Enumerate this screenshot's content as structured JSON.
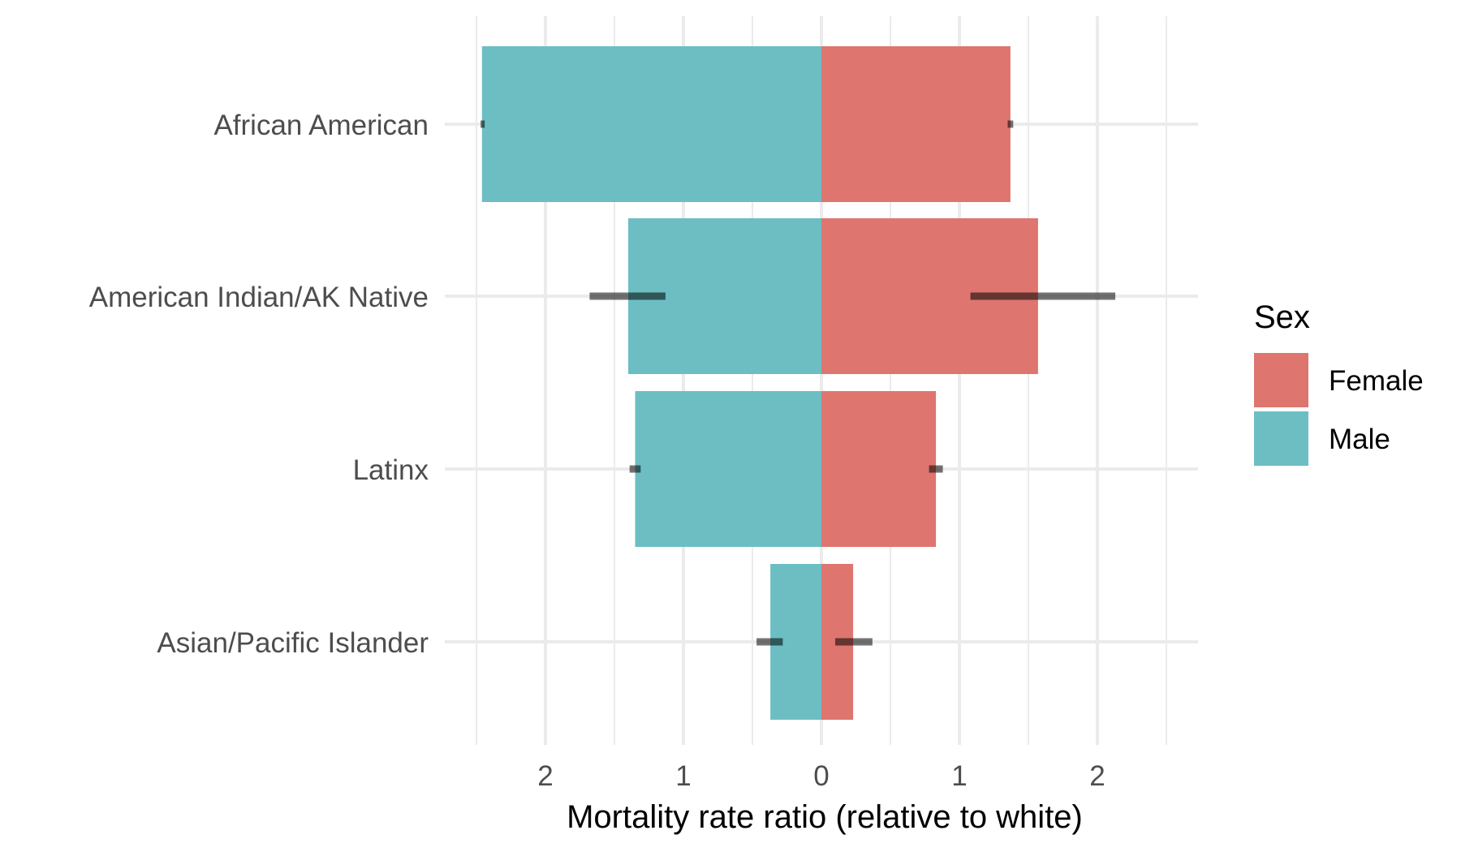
{
  "chart_data": {
    "type": "bar",
    "orientation": "horizontal-diverging",
    "title": "",
    "xlabel": "Mortality rate ratio (relative to white)",
    "ylabel": "",
    "xlim": [
      -2.5,
      2.5
    ],
    "x_ticks": [
      {
        "value": -2,
        "label": "2"
      },
      {
        "value": -1,
        "label": "1"
      },
      {
        "value": 0,
        "label": "0"
      },
      {
        "value": 1,
        "label": "1"
      },
      {
        "value": 2,
        "label": "2"
      }
    ],
    "categories": [
      "African American",
      "American Indian/AK Native",
      "Latinx",
      "Asian/Pacific Islander"
    ],
    "legend": {
      "title": "Sex",
      "position": "right"
    },
    "grid": true,
    "series": [
      {
        "name": "Female",
        "color": "#DE756E",
        "direction": 1,
        "values": [
          1.37,
          1.57,
          0.83,
          0.23
        ],
        "ci": [
          [
            1.35,
            1.39
          ],
          [
            1.08,
            2.13
          ],
          [
            0.78,
            0.88
          ],
          [
            0.1,
            0.37
          ]
        ]
      },
      {
        "name": "Male",
        "color": "#6CBEC3",
        "direction": -1,
        "values": [
          2.46,
          1.4,
          1.35,
          0.37
        ],
        "ci": [
          [
            2.44,
            2.47
          ],
          [
            1.13,
            1.68
          ],
          [
            1.31,
            1.39
          ],
          [
            0.28,
            0.47
          ]
        ]
      }
    ]
  }
}
